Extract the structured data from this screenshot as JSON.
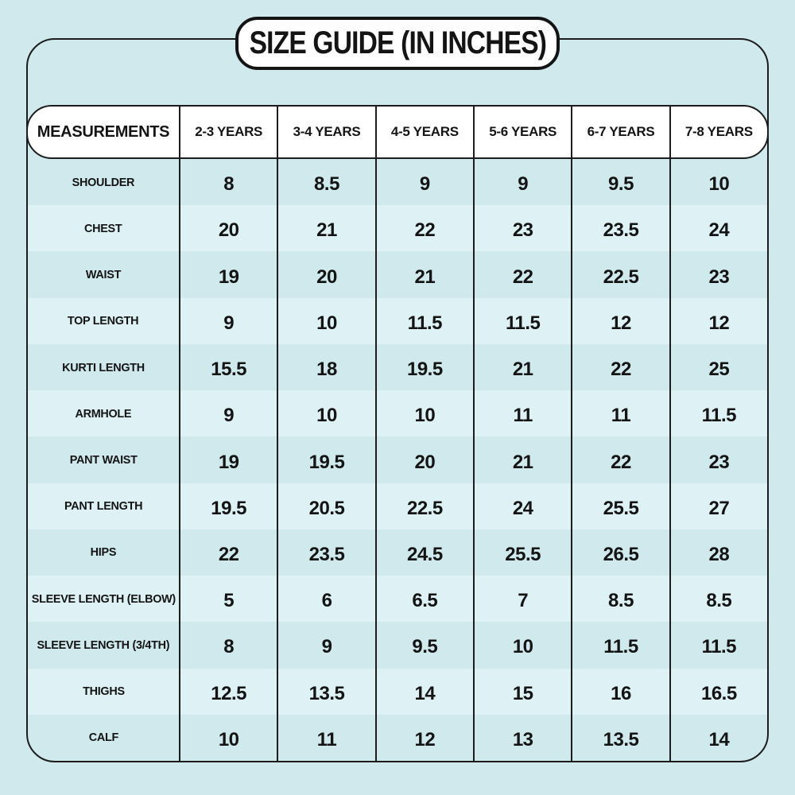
{
  "title": "SIZE GUIDE (IN INCHES)",
  "colors": {
    "background": "#cfe9ed",
    "stripe_light": "#def1f4",
    "line": "#1c1c1c",
    "text": "#141414",
    "pill_background": "#ffffff"
  },
  "table": {
    "columns": [
      "MEASUREMENTS",
      "2-3 YEARS",
      "3-4 YEARS",
      "4-5 YEARS",
      "5-6 YEARS",
      "6-7 YEARS",
      "7-8 YEARS"
    ],
    "rows": [
      {
        "label": "SHOULDER",
        "values": [
          "8",
          "8.5",
          "9",
          "9",
          "9.5",
          "10"
        ]
      },
      {
        "label": "CHEST",
        "values": [
          "20",
          "21",
          "22",
          "23",
          "23.5",
          "24"
        ]
      },
      {
        "label": "WAIST",
        "values": [
          "19",
          "20",
          "21",
          "22",
          "22.5",
          "23"
        ]
      },
      {
        "label": "TOP LENGTH",
        "values": [
          "9",
          "10",
          "11.5",
          "11.5",
          "12",
          "12"
        ]
      },
      {
        "label": "KURTI LENGTH",
        "values": [
          "15.5",
          "18",
          "19.5",
          "21",
          "22",
          "25"
        ]
      },
      {
        "label": "ARMHOLE",
        "values": [
          "9",
          "10",
          "10",
          "11",
          "11",
          "11.5"
        ]
      },
      {
        "label": "PANT WAIST",
        "values": [
          "19",
          "19.5",
          "20",
          "21",
          "22",
          "23"
        ]
      },
      {
        "label": "PANT LENGTH",
        "values": [
          "19.5",
          "20.5",
          "22.5",
          "24",
          "25.5",
          "27"
        ]
      },
      {
        "label": "HIPS",
        "values": [
          "22",
          "23.5",
          "24.5",
          "25.5",
          "26.5",
          "28"
        ]
      },
      {
        "label": "SLEEVE LENGTH (ELBOW)",
        "values": [
          "5",
          "6",
          "6.5",
          "7",
          "8.5",
          "8.5"
        ]
      },
      {
        "label": "SLEEVE LENGTH (3/4TH)",
        "values": [
          "8",
          "9",
          "9.5",
          "10",
          "11.5",
          "11.5"
        ]
      },
      {
        "label": "THIGHS",
        "values": [
          "12.5",
          "13.5",
          "14",
          "15",
          "16",
          "16.5"
        ]
      },
      {
        "label": "CALF",
        "values": [
          "10",
          "11",
          "12",
          "13",
          "13.5",
          "14"
        ]
      }
    ]
  }
}
